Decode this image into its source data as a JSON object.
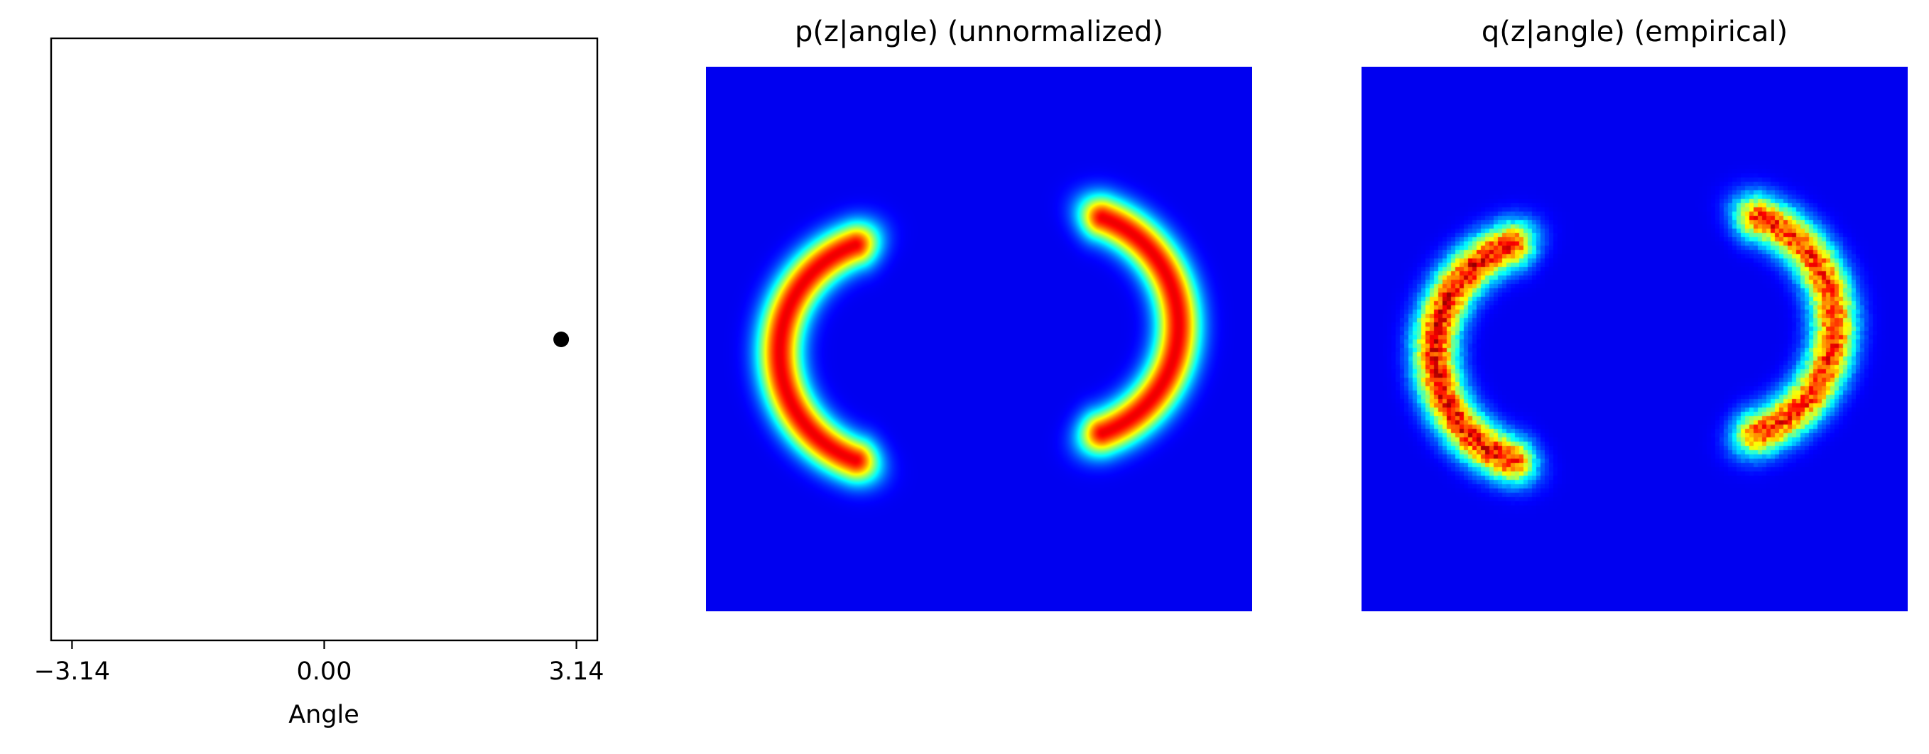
{
  "chart_data": [
    {
      "type": "scatter",
      "title": "",
      "xlabel": "Angle",
      "ylabel": "",
      "xlim": [
        -3.4,
        3.4
      ],
      "xticks": [
        -3.14,
        0.0,
        3.14
      ],
      "xtick_labels": [
        "−3.14",
        "0.00",
        "3.14"
      ],
      "yticks": [],
      "grid": false,
      "series": [
        {
          "x": [
            2.95
          ],
          "y": [
            0.0
          ],
          "color": "#000000"
        }
      ]
    },
    {
      "type": "heatmap",
      "title": "p(z|angle) (unnormalized)",
      "colormap": "jet",
      "background": "#00007f",
      "axes_visible": false,
      "smooth": true,
      "blobs": [
        {
          "cx": -0.31,
          "cy": 0.05,
          "arc_radius": 0.42,
          "arc_center_angle": 180,
          "arc_span": 70,
          "thickness": 0.08,
          "intensity": 1.0,
          "tail_extra": 0.12
        },
        {
          "cx": 0.31,
          "cy": -0.05,
          "arc_radius": 0.42,
          "arc_center_angle": 0,
          "arc_span": 70,
          "thickness": 0.08,
          "intensity": 1.0,
          "tail_extra": 0.12
        }
      ]
    },
    {
      "type": "heatmap",
      "title": "q(z|angle) (empirical)",
      "colormap": "jet",
      "background": "#00007f",
      "axes_visible": false,
      "smooth": false,
      "noise": true,
      "blobs": [
        {
          "cx": -0.31,
          "cy": 0.05,
          "arc_radius": 0.42,
          "arc_center_angle": 180,
          "arc_span": 70,
          "thickness": 0.08,
          "intensity": 1.0,
          "tail_extra": 0.12
        },
        {
          "cx": 0.31,
          "cy": -0.05,
          "arc_radius": 0.42,
          "arc_center_angle": 0,
          "arc_span": 70,
          "thickness": 0.08,
          "intensity": 0.95,
          "tail_extra": 0.12
        }
      ]
    }
  ]
}
